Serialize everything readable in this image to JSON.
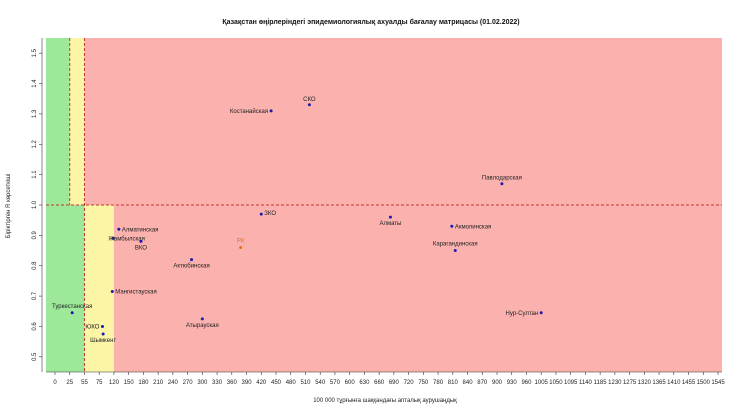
{
  "chart_data": {
    "type": "scatter",
    "title": "Қазақстан өңірлеріндегі эпидемиологиялық ахуалды бағалау матрицасы  (01.02.2022)",
    "xlabel": "100 000 тұрғынға шаққандағы апталық аурушаңдық",
    "ylabel": "Біріктірген R көрсеткіші",
    "xlim": [
      -10,
      1550
    ],
    "ylim": [
      0.45,
      1.55
    ],
    "x_ticks": [
      0,
      25,
      55,
      75,
      120,
      150,
      180,
      210,
      240,
      270,
      300,
      330,
      360,
      390,
      420,
      450,
      480,
      510,
      540,
      570,
      600,
      630,
      660,
      690,
      720,
      750,
      780,
      810,
      840,
      870,
      900,
      930,
      960,
      1005,
      1050,
      1095,
      1140,
      1185,
      1230,
      1275,
      1320,
      1365,
      1410,
      1455,
      1500,
      1545
    ],
    "y_ticks": [
      0.5,
      0.6,
      0.7,
      0.8,
      0.9,
      1.0,
      1.1,
      1.2,
      1.3,
      1.4,
      1.5
    ],
    "zones": {
      "green": "#9ee89a",
      "yellow": "#fdf5a6",
      "red": "#fbb1ad",
      "threshold_line": "#c0392b",
      "r_threshold": 1.0,
      "green_limit": 25,
      "yellow_limit": 55,
      "lower_yellow_limit": 120
    },
    "points": [
      {
        "name": "СКО",
        "x": 518,
        "y": 1.33,
        "color": "#1a1ab0"
      },
      {
        "name": "Костанайская",
        "x": 440,
        "y": 1.31,
        "color": "#1a1ab0"
      },
      {
        "name": "Павлодарская",
        "x": 910,
        "y": 1.07,
        "color": "#1a1ab0"
      },
      {
        "name": "ЗКО",
        "x": 420,
        "y": 0.97,
        "color": "#1a1ab0"
      },
      {
        "name": "Алматы",
        "x": 683,
        "y": 0.96,
        "color": "#1a1ab0"
      },
      {
        "name": "Акмолинская",
        "x": 808,
        "y": 0.93,
        "color": "#1a1ab0"
      },
      {
        "name": "Алматинская",
        "x": 130,
        "y": 0.92,
        "color": "#1a1ab0"
      },
      {
        "name": "Жамбылская",
        "x": 118,
        "y": 0.89,
        "color": "#1a1ab0"
      },
      {
        "name": "ВКО",
        "x": 175,
        "y": 0.88,
        "color": "#1a1ab0"
      },
      {
        "name": "РК",
        "x": 378,
        "y": 0.86,
        "color": "#e8701a"
      },
      {
        "name": "Карагандинская",
        "x": 815,
        "y": 0.85,
        "color": "#1a1ab0"
      },
      {
        "name": "Актюбинская",
        "x": 278,
        "y": 0.82,
        "color": "#1a1ab0"
      },
      {
        "name": "Мангистауская",
        "x": 115,
        "y": 0.715,
        "color": "#1a1ab0"
      },
      {
        "name": "Туркестанская",
        "x": 30,
        "y": 0.645,
        "color": "#1a1ab0"
      },
      {
        "name": "Нур-Султан",
        "x": 1005,
        "y": 0.645,
        "color": "#1a1ab0"
      },
      {
        "name": "Атырауская",
        "x": 300,
        "y": 0.625,
        "color": "#1a1ab0"
      },
      {
        "name": "ЮКО",
        "x": 85,
        "y": 0.6,
        "color": "#1a1ab0"
      },
      {
        "name": "Шымкент",
        "x": 87,
        "y": 0.575,
        "color": "#1a1ab0"
      }
    ]
  }
}
